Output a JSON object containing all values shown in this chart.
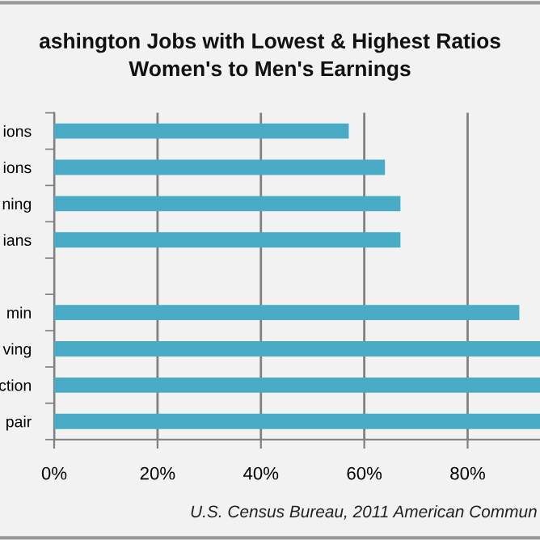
{
  "chart_data": {
    "type": "bar",
    "orientation": "horizontal",
    "title": "ashington Jobs with Lowest & Highest Ratios\nWomen's to Men's Earnings",
    "categories": [
      "ions",
      "ions",
      "ning",
      "ians",
      null,
      "min",
      "ving",
      "ction",
      "pair"
    ],
    "values": [
      57,
      64,
      67,
      67,
      null,
      90,
      94,
      94,
      94
    ],
    "color": "#4aabc6",
    "xlim": [
      0,
      94
    ],
    "xticks": [
      {
        "value": 0,
        "label": "0%"
      },
      {
        "value": 20,
        "label": "20%"
      },
      {
        "value": 40,
        "label": "40%"
      },
      {
        "value": 60,
        "label": "60%"
      },
      {
        "value": 80,
        "label": "80%"
      }
    ],
    "grid": "x",
    "annotations": [
      "U.S. Census Bureau, 2011 American Commun"
    ]
  }
}
